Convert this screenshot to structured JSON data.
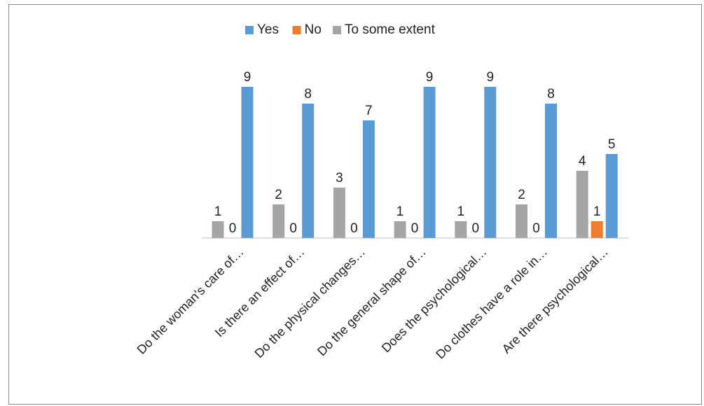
{
  "chart_data": {
    "type": "bar",
    "title": "",
    "xlabel": "",
    "ylabel": "",
    "ylim": [
      0,
      9
    ],
    "grid": false,
    "legend_position": "top",
    "categories": [
      "Do the woman's care of…",
      "Is there an effect of…",
      "Do the physical changes…",
      "Do the general shape of…",
      "Does the psychological…",
      "Do clothes have a role in…",
      "Are there psychological…"
    ],
    "series": [
      {
        "name": "To some extent",
        "color": "#a5a5a5",
        "values": [
          1,
          2,
          3,
          1,
          1,
          2,
          4
        ]
      },
      {
        "name": "No",
        "color": "#ed7d31",
        "values": [
          0,
          0,
          0,
          0,
          0,
          0,
          1
        ]
      },
      {
        "name": "Yes",
        "color": "#5b9bd5",
        "values": [
          9,
          8,
          7,
          9,
          9,
          8,
          5
        ]
      }
    ],
    "legend_order": [
      "Yes",
      "No",
      "To some extent"
    ]
  }
}
